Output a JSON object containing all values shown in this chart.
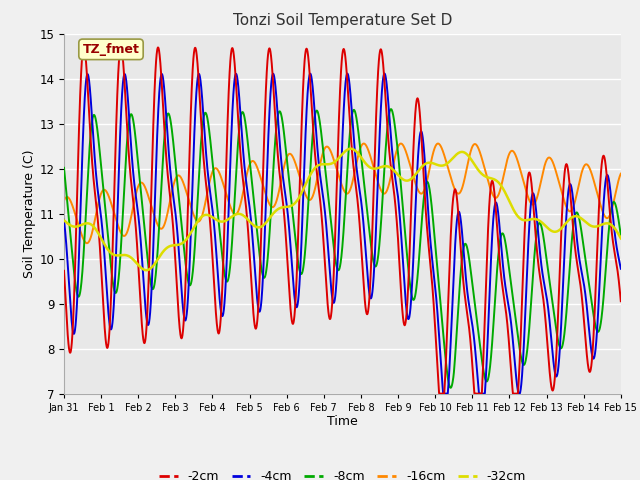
{
  "title": "Tonzi Soil Temperature Set D",
  "xlabel": "Time",
  "ylabel": "Soil Temperature (C)",
  "ylim": [
    7.0,
    15.0
  ],
  "yticks": [
    7.0,
    8.0,
    9.0,
    10.0,
    11.0,
    12.0,
    13.0,
    14.0,
    15.0
  ],
  "x_labels": [
    "Jan 31",
    "Feb 1",
    "Feb 2",
    "Feb 3",
    "Feb 4",
    "Feb 5",
    "Feb 6",
    "Feb 7",
    "Feb 8",
    "Feb 9",
    "Feb 10",
    "Feb 11",
    "Feb 12",
    "Feb 13",
    "Feb 14",
    "Feb 15"
  ],
  "series": {
    "-2cm": {
      "color": "#dd0000",
      "lw": 1.4
    },
    "-4cm": {
      "color": "#0000dd",
      "lw": 1.4
    },
    "-8cm": {
      "color": "#00aa00",
      "lw": 1.4
    },
    "-16cm": {
      "color": "#ff8800",
      "lw": 1.4
    },
    "-32cm": {
      "color": "#dddd00",
      "lw": 1.8
    }
  },
  "legend_label": "TZ_fmet",
  "fig_bg": "#f0f0f0",
  "plot_bg": "#e8e8e8",
  "grid_color": "#ffffff"
}
